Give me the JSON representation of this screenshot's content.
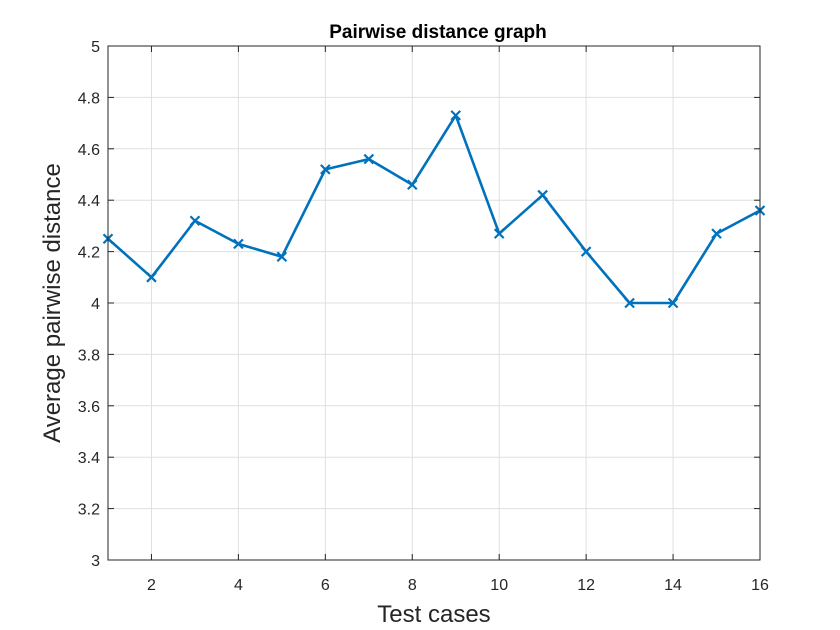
{
  "chart_data": {
    "type": "line",
    "title": "Pairwise distance graph",
    "xlabel": "Test cases",
    "ylabel": "Average pairwise distance",
    "xlim": [
      1,
      16
    ],
    "ylim": [
      3,
      5
    ],
    "x_ticks": [
      2,
      4,
      6,
      8,
      10,
      12,
      14,
      16
    ],
    "y_ticks": [
      3,
      3.2,
      3.4,
      3.6,
      3.8,
      4,
      4.2,
      4.4,
      4.6,
      4.8,
      5
    ],
    "x_tick_labels": [
      "2",
      "4",
      "6",
      "8",
      "10",
      "12",
      "14",
      "16"
    ],
    "y_tick_labels": [
      "3",
      "3.2",
      "3.4",
      "3.6",
      "3.8",
      "4",
      "4.2",
      "4.4",
      "4.6",
      "4.8",
      "5"
    ],
    "grid": true,
    "marker": "x",
    "series": [
      {
        "color": "#0072bd",
        "x": [
          1,
          2,
          3,
          4,
          5,
          6,
          7,
          8,
          9,
          10,
          11,
          12,
          13,
          14,
          15,
          16
        ],
        "y": [
          4.25,
          4.1,
          4.32,
          4.23,
          4.18,
          4.52,
          4.56,
          4.46,
          4.73,
          4.27,
          4.42,
          4.2,
          4.0,
          4.0,
          4.27,
          4.36
        ]
      }
    ]
  }
}
